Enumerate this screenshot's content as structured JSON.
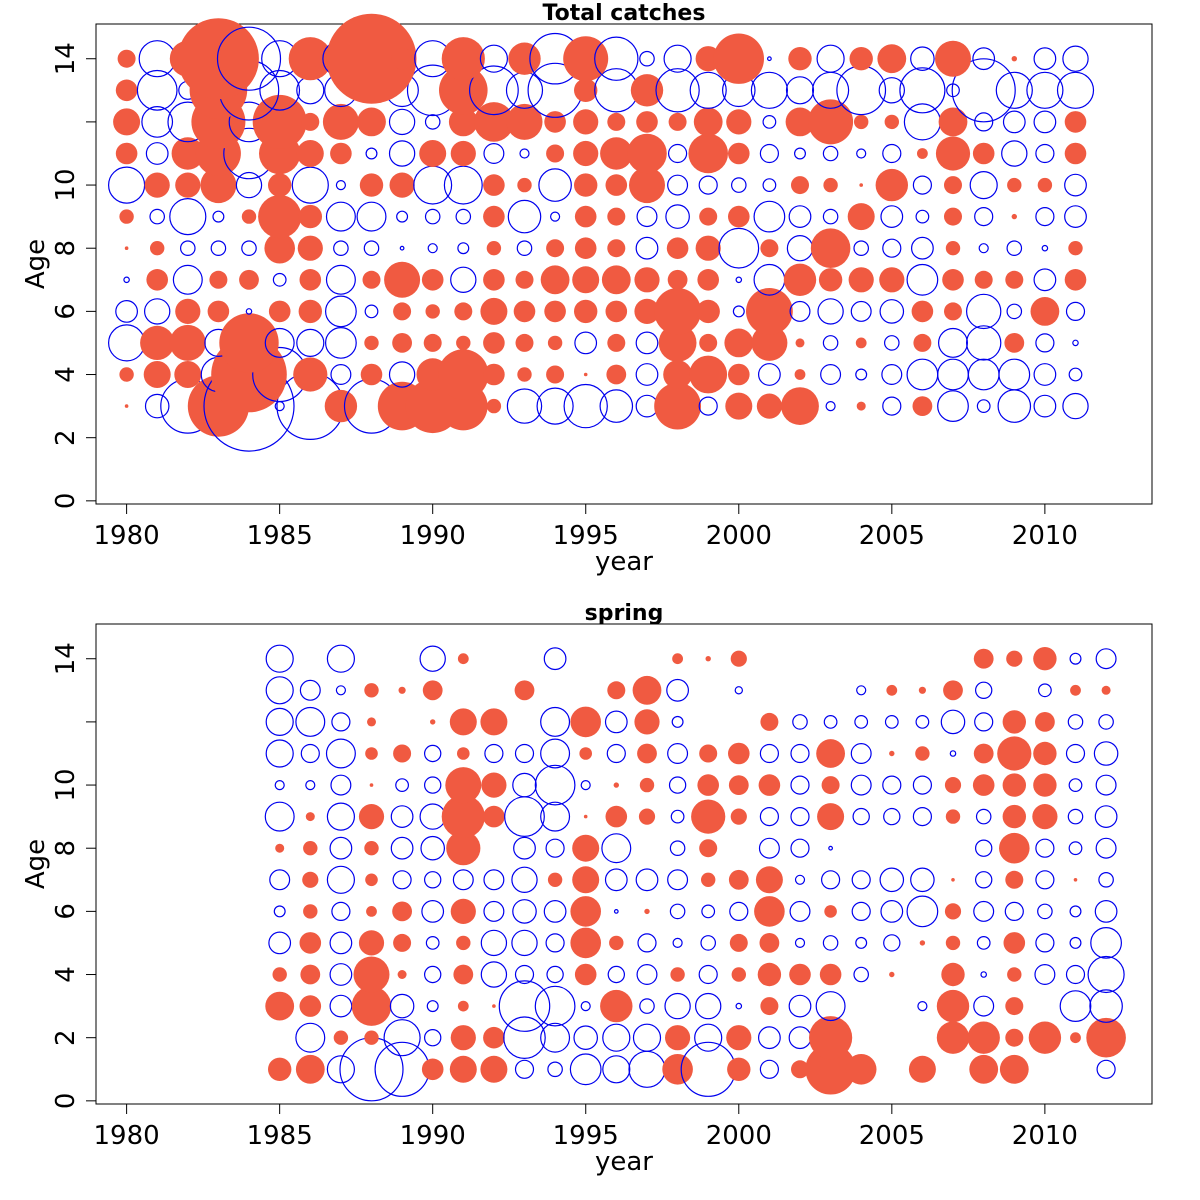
{
  "colors": {
    "positive": "#F05A41",
    "negative": "#0000EE",
    "frame": "#000000",
    "background": "#FFFFFF"
  },
  "chart_data": [
    {
      "type": "bubble",
      "title": "Total catches",
      "xlabel": "year",
      "ylabel": "Age",
      "xlim": [
        1979,
        2013.5
      ],
      "ylim": [
        -0.1,
        15.1
      ],
      "xticks": [
        1980,
        1985,
        1990,
        1995,
        2000,
        2005,
        2010
      ],
      "yticks": [
        0,
        2,
        4,
        6,
        8,
        10,
        12,
        14
      ],
      "ytick_labels": [
        "0",
        "2",
        "4",
        "6",
        "8",
        "10",
        "",
        "14"
      ],
      "legend": "none",
      "grid": false,
      "value_encoding": "signed residual: filled circle = positive, open circle = negative, radius proportional to magnitude",
      "years": [
        1980,
        1981,
        1982,
        1983,
        1984,
        1985,
        1986,
        1987,
        1988,
        1989,
        1990,
        1991,
        1992,
        1993,
        1994,
        1995,
        1996,
        1997,
        1998,
        1999,
        2000,
        2001,
        2002,
        2003,
        2004,
        2005,
        2006,
        2007,
        2008,
        2009,
        2010,
        2011
      ],
      "ages": [
        3,
        4,
        5,
        6,
        7,
        8,
        9,
        10,
        11,
        12,
        13,
        14
      ],
      "values": [
        [
          2,
          -13,
          -30,
          34,
          -50,
          -5,
          -37,
          18,
          -30,
          27,
          30,
          27,
          8,
          -19,
          -20,
          -24,
          -18,
          -12,
          26,
          -10,
          15,
          14,
          21,
          -5,
          5,
          -10,
          11,
          -17,
          -7,
          -18,
          -12,
          -14
        ],
        [
          8,
          15,
          15,
          -19,
          42,
          -30,
          19,
          -11,
          12,
          -14,
          18,
          28,
          12,
          8,
          10,
          2,
          11,
          -12,
          16,
          21,
          12,
          -12,
          6,
          -11,
          -6,
          -11,
          -17,
          -17,
          -17,
          -17,
          -12,
          -7
        ],
        [
          -20,
          19,
          20,
          -15,
          33,
          -16,
          -15,
          -17,
          8,
          11,
          10,
          8,
          12,
          10,
          8,
          -12,
          10,
          -12,
          21,
          10,
          16,
          20,
          5,
          -8,
          6,
          -8,
          10,
          -16,
          -19,
          11,
          -10,
          -3
        ],
        [
          -12,
          -14,
          14,
          12,
          -3,
          12,
          13,
          -17,
          -7,
          10,
          8,
          10,
          15,
          12,
          12,
          13,
          12,
          14,
          26,
          13,
          -6,
          26,
          -11,
          -14,
          -11,
          -13,
          12,
          10,
          -19,
          -8,
          16,
          -10
        ],
        [
          -3,
          12,
          -16,
          10,
          11,
          -7,
          12,
          -16,
          10,
          20,
          12,
          -14,
          12,
          10,
          16,
          15,
          16,
          14,
          11,
          12,
          -3,
          -17,
          18,
          13,
          14,
          14,
          -17,
          12,
          10,
          10,
          -12,
          12
        ],
        [
          2,
          8,
          -8,
          -8,
          -8,
          17,
          14,
          -8,
          -8,
          -2,
          -5,
          -6,
          8,
          -8,
          10,
          12,
          10,
          -12,
          12,
          14,
          -22,
          10,
          -14,
          22,
          -8,
          -10,
          -12,
          8,
          -5,
          -8,
          -3,
          8
        ],
        [
          8,
          -8,
          -20,
          -6,
          8,
          24,
          13,
          -16,
          -16,
          -6,
          -8,
          -8,
          12,
          -18,
          -5,
          12,
          10,
          -11,
          -13,
          10,
          12,
          -17,
          -12,
          -8,
          15,
          -12,
          -7,
          10,
          -10,
          3,
          -10,
          -12
        ],
        [
          -20,
          14,
          14,
          20,
          -14,
          13,
          -20,
          -5,
          13,
          14,
          -21,
          -21,
          12,
          8,
          -18,
          13,
          12,
          20,
          -11,
          -10,
          -8,
          -7,
          10,
          8,
          2,
          18,
          -10,
          10,
          -15,
          8,
          8,
          -12
        ],
        [
          12,
          -12,
          18,
          25,
          -28,
          23,
          15,
          12,
          -6,
          -14,
          15,
          14,
          -11,
          -5,
          10,
          14,
          18,
          22,
          -10,
          22,
          12,
          -10,
          -6,
          -8,
          -5,
          -10,
          6,
          19,
          12,
          -14,
          -10,
          12
        ],
        [
          15,
          -17,
          -22,
          30,
          -22,
          30,
          10,
          20,
          16,
          -14,
          -8,
          16,
          22,
          20,
          12,
          14,
          10,
          12,
          10,
          16,
          14,
          -7,
          16,
          25,
          8,
          8,
          -20,
          16,
          -10,
          -12,
          -12,
          12
        ],
        [
          12,
          -22,
          -10,
          32,
          -33,
          -22,
          -15,
          -18,
          -7,
          -18,
          -28,
          27,
          -27,
          -20,
          -30,
          13,
          -24,
          18,
          -24,
          -20,
          -18,
          -20,
          -15,
          -20,
          -27,
          -14,
          -25,
          -7,
          -35,
          -20,
          -20,
          -20
        ],
        [
          10,
          -20,
          20,
          45,
          -35,
          -20,
          24,
          -20,
          50,
          12,
          -20,
          24,
          -15,
          18,
          -28,
          25,
          -24,
          -8,
          -15,
          14,
          28,
          -2,
          13,
          -15,
          13,
          16,
          -13,
          20,
          -12,
          3,
          -12,
          -14
        ]
      ]
    },
    {
      "type": "bubble",
      "title": "spring",
      "xlabel": "year",
      "ylabel": "Age",
      "xlim": [
        1979,
        2013.5
      ],
      "ylim": [
        -0.1,
        15.1
      ],
      "xticks": [
        1980,
        1985,
        1990,
        1995,
        2000,
        2005,
        2010
      ],
      "yticks": [
        0,
        2,
        4,
        6,
        8,
        10,
        12,
        14
      ],
      "ytick_labels": [
        "0",
        "2",
        "4",
        "6",
        "8",
        "10",
        "",
        "14"
      ],
      "legend": "none",
      "grid": false,
      "value_encoding": "signed residual: filled circle = positive, open circle = negative, radius proportional to magnitude",
      "years": [
        1985,
        1986,
        1987,
        1988,
        1989,
        1990,
        1991,
        1992,
        1993,
        1994,
        1995,
        1996,
        1997,
        1998,
        1999,
        2000,
        2001,
        2002,
        2003,
        2004,
        2005,
        2006,
        2007,
        2008,
        2009,
        2010,
        2011,
        2012
      ],
      "ages": [
        1,
        2,
        3,
        4,
        5,
        6,
        7,
        8,
        9,
        10,
        11,
        12,
        13,
        14
      ],
      "values": [
        [
          13,
          16,
          -15,
          -35,
          -30,
          12,
          15,
          15,
          -10,
          -8,
          -17,
          -15,
          -20,
          17,
          -30,
          13,
          -10,
          10,
          28,
          17,
          0,
          15,
          0,
          16,
          16,
          0,
          0,
          -10
        ],
        [
          0,
          -16,
          8,
          8,
          -20,
          -9,
          14,
          12,
          -23,
          -16,
          -13,
          -15,
          -15,
          14,
          -15,
          14,
          -12,
          -12,
          24,
          0,
          0,
          0,
          18,
          18,
          10,
          18,
          6,
          22
        ],
        [
          16,
          12,
          -12,
          22,
          -13,
          -6,
          6,
          2,
          -28,
          -22,
          -5,
          18,
          -8,
          -14,
          -14,
          -3,
          10,
          -12,
          -16,
          0,
          0,
          -5,
          18,
          -11,
          10,
          0,
          -17,
          -18
        ],
        [
          8,
          11,
          -12,
          20,
          5,
          -9,
          11,
          -14,
          -10,
          -9,
          12,
          -9,
          -11,
          8,
          -10,
          8,
          13,
          12,
          12,
          -8,
          3,
          0,
          13,
          -3,
          8,
          -11,
          -10,
          -20
        ],
        [
          -12,
          12,
          -12,
          14,
          10,
          -7,
          8,
          -14,
          -14,
          -10,
          17,
          8,
          -10,
          -5,
          -8,
          10,
          11,
          -5,
          -8,
          -6,
          -9,
          3,
          8,
          -7,
          12,
          -10,
          -6,
          -17
        ],
        [
          -6,
          8,
          -10,
          6,
          11,
          -12,
          14,
          -11,
          -13,
          -12,
          17,
          -2,
          3,
          -8,
          -7,
          -10,
          17,
          -11,
          7,
          -10,
          -12,
          -17,
          9,
          -11,
          -10,
          -8,
          -6,
          -12
        ],
        [
          -11,
          9,
          -15,
          7,
          -10,
          -9,
          -11,
          -11,
          -14,
          8,
          15,
          -12,
          -12,
          -11,
          8,
          11,
          15,
          -5,
          -10,
          -10,
          -13,
          -13,
          2,
          -9,
          10,
          -10,
          2,
          -8
        ],
        [
          5,
          8,
          -12,
          8,
          -12,
          -13,
          19,
          0,
          -12,
          -10,
          15,
          -16,
          0,
          -8,
          10,
          0,
          -11,
          -10,
          -2,
          0,
          0,
          0,
          0,
          -9,
          17,
          -10,
          -7,
          -11
        ],
        [
          -16,
          5,
          -15,
          14,
          -12,
          -14,
          24,
          12,
          -22,
          -16,
          2,
          12,
          9,
          -7,
          19,
          9,
          -10,
          -10,
          15,
          -9,
          -9,
          -10,
          8,
          -8,
          13,
          14,
          -8,
          -12
        ],
        [
          -5,
          -5,
          -11,
          2,
          -7,
          -9,
          20,
          14,
          -13,
          -22,
          -5,
          3,
          8,
          -9,
          12,
          11,
          12,
          -10,
          10,
          -11,
          -10,
          -10,
          9,
          12,
          13,
          13,
          -7,
          -11
        ],
        [
          -15,
          -10,
          -16,
          7,
          10,
          -9,
          7,
          -10,
          -10,
          -16,
          7,
          -10,
          11,
          -11,
          10,
          12,
          -10,
          -10,
          16,
          -11,
          3,
          8,
          -3,
          11,
          19,
          13,
          -10,
          -13
        ],
        [
          -15,
          -16,
          -10,
          5,
          0,
          3,
          15,
          15,
          0,
          -16,
          17,
          -12,
          14,
          -6,
          0,
          0,
          10,
          -8,
          -7,
          -7,
          -7,
          -7,
          -13,
          -10,
          13,
          11,
          -8,
          -8
        ],
        [
          -15,
          -11,
          -5,
          8,
          4,
          11,
          0,
          0,
          11,
          0,
          0,
          10,
          16,
          -12,
          0,
          -4,
          0,
          0,
          0,
          -5,
          6,
          4,
          11,
          -9,
          0,
          -7,
          6,
          5
        ],
        [
          -15,
          0,
          -15,
          0,
          0,
          -14,
          6,
          0,
          0,
          -12,
          0,
          0,
          0,
          6,
          3,
          9,
          0,
          0,
          0,
          0,
          0,
          0,
          0,
          11,
          9,
          13,
          -6,
          -11
        ]
      ]
    }
  ]
}
